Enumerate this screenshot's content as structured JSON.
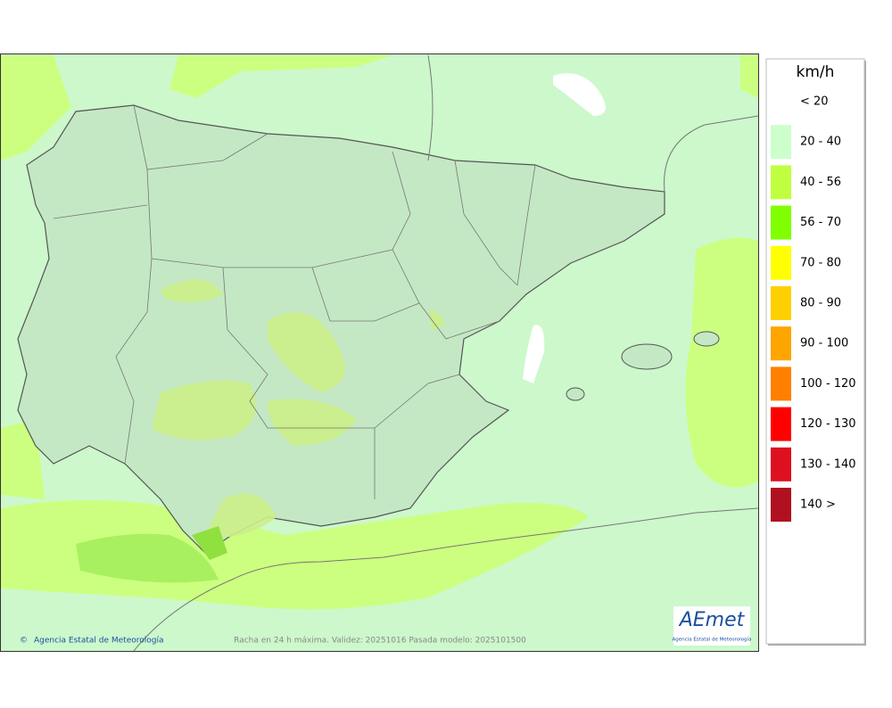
{
  "legend": {
    "unit": "km/h",
    "items": [
      {
        "label": "< 20",
        "color": null
      },
      {
        "label": "20 - 40",
        "color": "#ccffcc"
      },
      {
        "label": "40 - 56",
        "color": "#c0ff40"
      },
      {
        "label": "56 - 70",
        "color": "#80ff00"
      },
      {
        "label": "70 - 80",
        "color": "#ffff00"
      },
      {
        "label": "80 - 90",
        "color": "#ffd000"
      },
      {
        "label": "90 - 100",
        "color": "#ffa500"
      },
      {
        "label": "100 - 120",
        "color": "#ff8000"
      },
      {
        "label": "120 - 130",
        "color": "#ff0000"
      },
      {
        "label": "130 - 140",
        "color": "#dd1020"
      },
      {
        "label": "140 >",
        "color": "#b01020"
      }
    ]
  },
  "map": {
    "credit": "Agencia Estatal de Meteorología",
    "caption": "Racha en 24 h máxima. Validez: 20251016 Pasada modelo: 2025101500",
    "logo": {
      "name": "AEmet",
      "subtitle": "Agencia Estatal de Meteorología"
    }
  }
}
